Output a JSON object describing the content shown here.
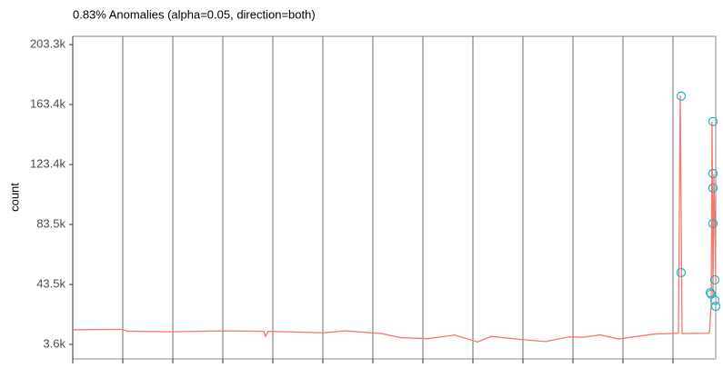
{
  "chart_data": {
    "type": "line",
    "title": "0.83% Anomalies (alpha=0.05, direction=both)",
    "y_label": "count",
    "xlim": [
      0,
      707
    ],
    "xticks": [
      0,
      55,
      110,
      165,
      220,
      275,
      330,
      385,
      440,
      495,
      550,
      605,
      660
    ],
    "ylim": [
      -6100,
      208800
    ],
    "yticks": [
      {
        "value": 3600,
        "label": "3.6k"
      },
      {
        "value": 43500,
        "label": "43.5k"
      },
      {
        "value": 83500,
        "label": "83.5k"
      },
      {
        "value": 123400,
        "label": "123.4k"
      },
      {
        "value": 163400,
        "label": "163.4k"
      },
      {
        "value": 203300,
        "label": "203.3k"
      }
    ],
    "grid": true,
    "series": [
      {
        "name": "count",
        "color": "#f8766d",
        "x": [
          0,
          55,
          60,
          110,
          165,
          210,
          212,
          215,
          275,
          300,
          340,
          360,
          390,
          420,
          445,
          460,
          490,
          520,
          545,
          560,
          580,
          600,
          625,
          640,
          666,
          668,
          670,
          700,
          702,
          703,
          704,
          705,
          706,
          707
        ],
        "values": [
          13300,
          13600,
          12400,
          12000,
          12600,
          12300,
          9000,
          12300,
          11300,
          12600,
          10800,
          8100,
          7400,
          9800,
          5200,
          8900,
          7000,
          5500,
          8600,
          8300,
          9900,
          7200,
          9300,
          10500,
          11000,
          169500,
          10800,
          11000,
          30000,
          152000,
          36000,
          117000,
          84000,
          46000
        ]
      },
      {
        "name": "anomalies",
        "color": "#1fb3c4",
        "marker": "circle",
        "x": [
          669,
          669,
          701,
          702,
          704,
          704,
          704,
          704,
          706,
          706,
          707
        ],
        "values": [
          169000,
          51400,
          38000,
          37000,
          152000,
          117400,
          107700,
          84100,
          46600,
          33000,
          29000
        ]
      }
    ]
  }
}
